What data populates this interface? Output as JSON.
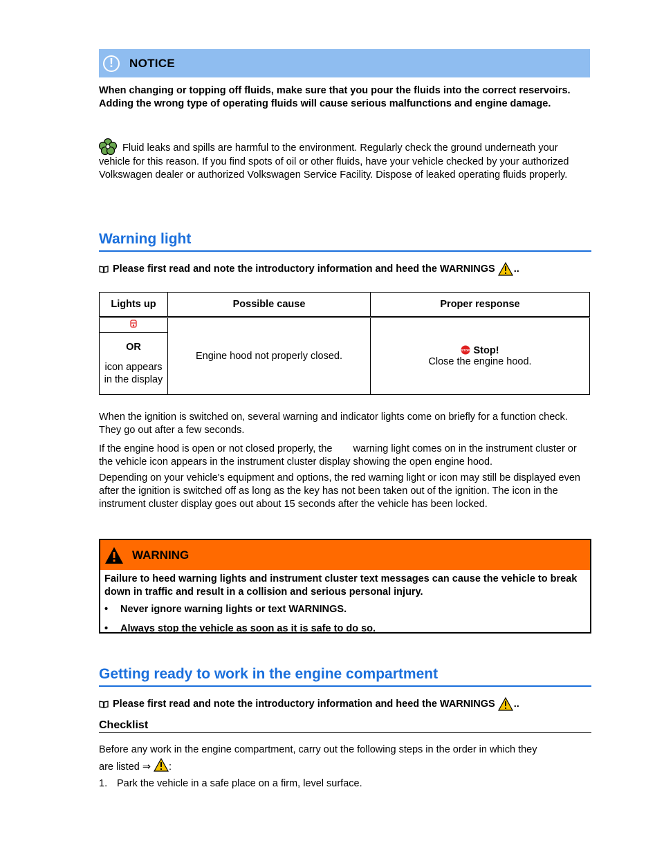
{
  "notice": {
    "title": "NOTICE",
    "text": "When changing or topping off fluids, make sure that you pour the fluids into the correct reservoirs. Adding the wrong type of operating fluids will cause serious malfunctions and engine damage."
  },
  "environment": {
    "text": "Fluid leaks and spills are harmful to the environment. Regularly check the ground underneath your vehicle for this reason. If you find spots of oil or other fluids, have your vehicle checked by your authorized Volkswagen dealer or authorized Volkswagen Service Facility. Dispose of leaked operating fluids properly."
  },
  "section1": {
    "heading": "Warning light",
    "read_note": "Please first read and note the introductory information and heed the WARNINGS",
    "read_note_suffix": ".."
  },
  "table": {
    "headers": [
      "Lights up",
      "Possible cause",
      "Proper response"
    ],
    "or_label": "OR",
    "icon_text": "icon appears in the display",
    "cause": "Engine hood not properly closed.",
    "stop_label": "Stop!",
    "response": "Close the engine hood."
  },
  "paragraphs": {
    "p1": "When the ignition is switched on, several warning and indicator lights come on briefly for a function check. They go out after a few seconds.",
    "p2a": "If the engine hood is open or not closed properly, the",
    "p2b": "warning light comes on in the instrument cluster or the vehicle icon appears in the instrument cluster display showing the open engine hood.",
    "p3": "Depending on your vehicle's equipment and options, the red warning light or icon may still be displayed even after the ignition is switched off as long as the key has not been taken out of the ignition. The icon in the instrument cluster display goes out about 15 seconds after the vehicle has been locked."
  },
  "warning": {
    "title": "WARNING",
    "text": "Failure to heed warning lights and instrument cluster text messages can cause the vehicle to break down in traffic and result in a collision and serious personal injury.",
    "bullets": [
      "Never ignore warning lights or text WARNINGS.",
      "Always stop the vehicle as soon as it is safe to do so."
    ]
  },
  "section2": {
    "heading": "Getting ready to work in the engine compartment",
    "read_note": "Please first read and note the introductory information and heed the WARNINGS",
    "read_note_suffix": "..",
    "subheading": "Checklist",
    "intro_a": "Before any work in the engine compartment, carry out the following steps in the order in which they",
    "intro_b": "are listed ⇒",
    "intro_c": ":",
    "step1_num": "1.",
    "step1": "Park the vehicle in a safe place on a firm, level surface."
  },
  "colors": {
    "notice_bg": "#8fbdf0",
    "warning_bg": "#ff6a00",
    "heading_blue": "#1a6fdc"
  }
}
